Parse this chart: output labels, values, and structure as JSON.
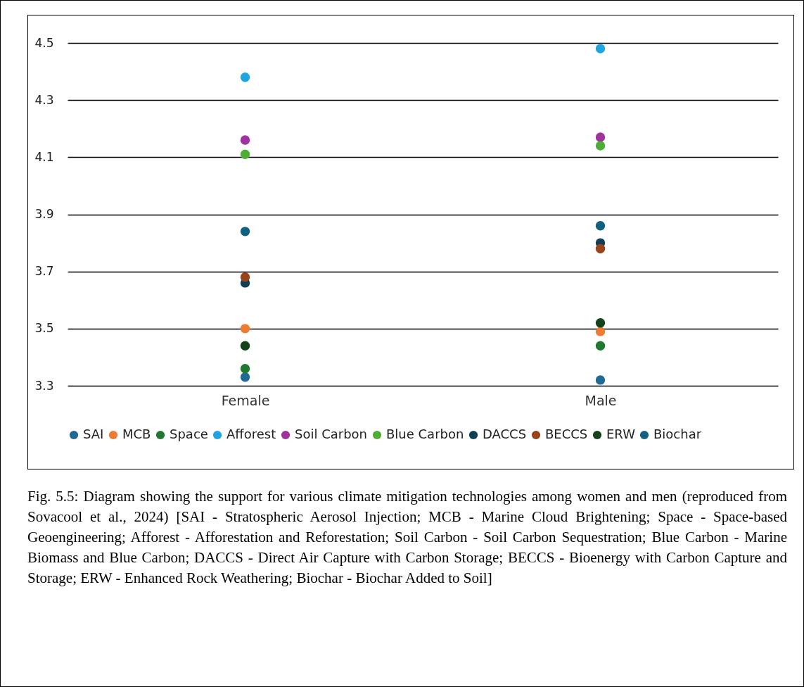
{
  "chart_data": {
    "type": "scatter",
    "categories": [
      "Female",
      "Male"
    ],
    "series": [
      {
        "name": "SAI",
        "color": "#1f6b94",
        "values": [
          3.33,
          3.32
        ]
      },
      {
        "name": "MCB",
        "color": "#ee7b30",
        "values": [
          3.5,
          3.49
        ]
      },
      {
        "name": "Space",
        "color": "#1f7a2e",
        "values": [
          3.36,
          3.44
        ]
      },
      {
        "name": "Afforest",
        "color": "#1ea5e0",
        "values": [
          4.38,
          4.48
        ]
      },
      {
        "name": "Soil Carbon",
        "color": "#a0329e",
        "values": [
          4.16,
          4.17
        ]
      },
      {
        "name": "Blue Carbon",
        "color": "#4eae34",
        "values": [
          4.11,
          4.14
        ]
      },
      {
        "name": "DACCS",
        "color": "#0e3f55",
        "values": [
          3.66,
          3.8
        ]
      },
      {
        "name": "BECCS",
        "color": "#99431a",
        "values": [
          3.68,
          3.78
        ]
      },
      {
        "name": "ERW",
        "color": "#12431a",
        "values": [
          3.44,
          3.52
        ]
      },
      {
        "name": "Biochar",
        "color": "#10607f",
        "values": [
          3.84,
          3.86
        ]
      }
    ],
    "ylim": [
      3.3,
      4.5
    ],
    "yticks": [
      3.3,
      3.5,
      3.7,
      3.9,
      4.1,
      4.3,
      4.5
    ],
    "grid": "y",
    "legend": "bottom",
    "marker": "circle",
    "annotations": [
      "Fig. 5.5: Diagram showing the support for various climate mitigation technologies among women and men (reproduced from Sovacool et al., 2024) [SAI - Stratospheric Aerosol Injection; MCB - Marine Cloud Brightening; Space - Space-based Geoengineering; Afforest - Afforestation and Reforestation; Soil Carbon - Soil Carbon Sequestration; Blue Carbon - Marine Biomass and Blue Carbon; DACCS - Direct Air Capture with Carbon Storage; BECCS - Bioenergy with Carbon Capture and Storage; ERW - Enhanced Rock Weathering; Biochar - Biochar Added to Soil]"
    ]
  }
}
